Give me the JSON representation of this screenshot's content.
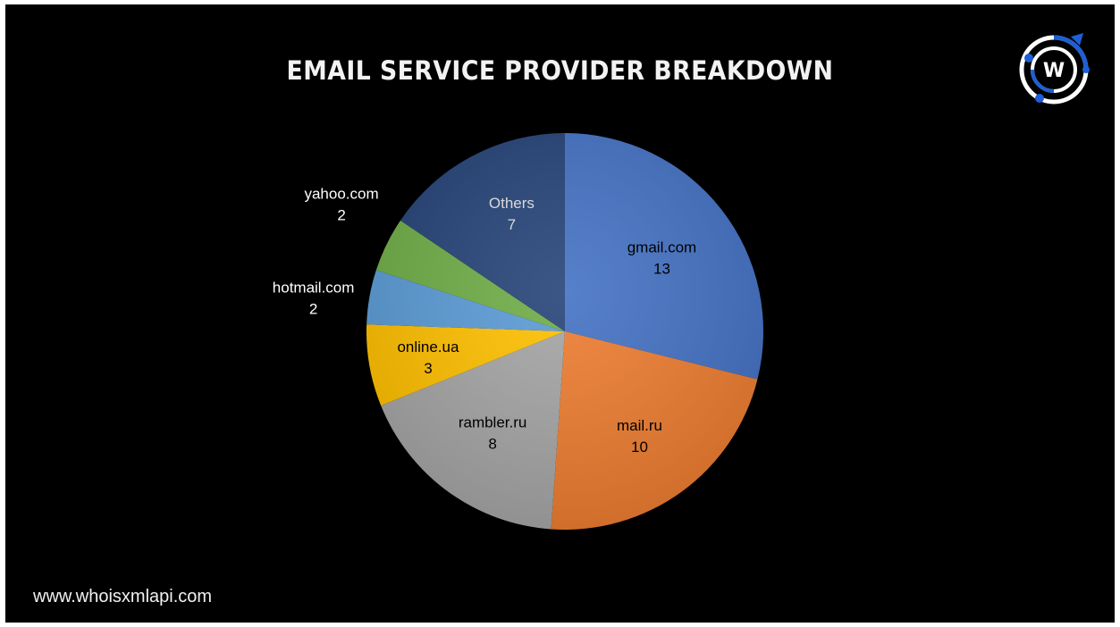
{
  "footer": {
    "url_text": "www.whoisxmlapi.com"
  },
  "logo": {
    "icon": "whoisxmlapi-w-logo-icon",
    "letter": "W"
  },
  "chart_data": {
    "type": "pie",
    "title": "EMAIL SERVICE PROVIDER BREAKDOWN",
    "start": "12 o'clock",
    "direction": "clockwise",
    "legend": "none",
    "data_labels": "category and value on slice",
    "slices": [
      {
        "label": "gmail.com",
        "value": 13,
        "color": "#4472c4",
        "label_color": "#000000"
      },
      {
        "label": "mail.ru",
        "value": 10,
        "color": "#ed7d31",
        "label_color": "#000000"
      },
      {
        "label": "rambler.ru",
        "value": 8,
        "color": "#a5a5a5",
        "label_color": "#000000"
      },
      {
        "label": "online.ua",
        "value": 3,
        "color": "#ffc000",
        "label_color": "#000000"
      },
      {
        "label": "hotmail.com",
        "value": 2,
        "color": "#5b9bd5",
        "label_color": "#ffffff"
      },
      {
        "label": "yahoo.com",
        "value": 2,
        "color": "#70ad47",
        "label_color": "#ffffff"
      },
      {
        "label": "Others",
        "value": 7,
        "color": "#264478",
        "label_color": "#d9d9d9"
      }
    ]
  }
}
